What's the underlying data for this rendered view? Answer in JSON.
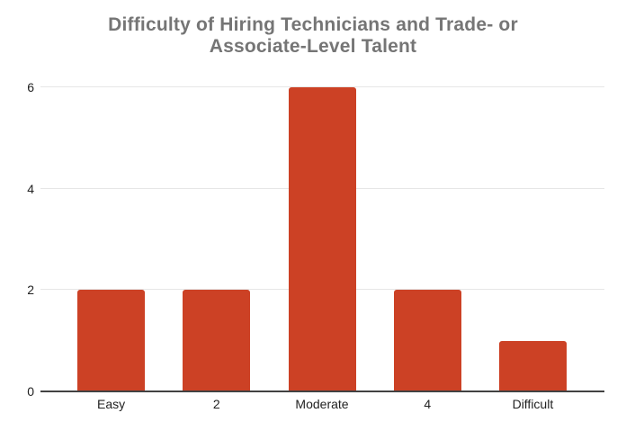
{
  "chart": {
    "title_lines": [
      "Difficulty of Hiring Technicians and Trade- or",
      "Associate-Level Talent"
    ]
  },
  "chart_data": {
    "type": "bar",
    "title": "Difficulty of Hiring Technicians and Trade- or Associate-Level Talent",
    "categories": [
      "Easy",
      "2",
      "Moderate",
      "4",
      "Difficult"
    ],
    "values": [
      2,
      2,
      6,
      2,
      1
    ],
    "xlabel": "",
    "ylabel": "",
    "ylim": [
      0,
      6
    ],
    "yticks": [
      0,
      2,
      4,
      6
    ],
    "grid": true,
    "legend": "none",
    "colors": {
      "bar": "#CC4125",
      "title": "#757575",
      "tick_label": "#222222",
      "gridline": "#e6e6e6",
      "baseline": "#424242",
      "background": "#ffffff"
    }
  }
}
